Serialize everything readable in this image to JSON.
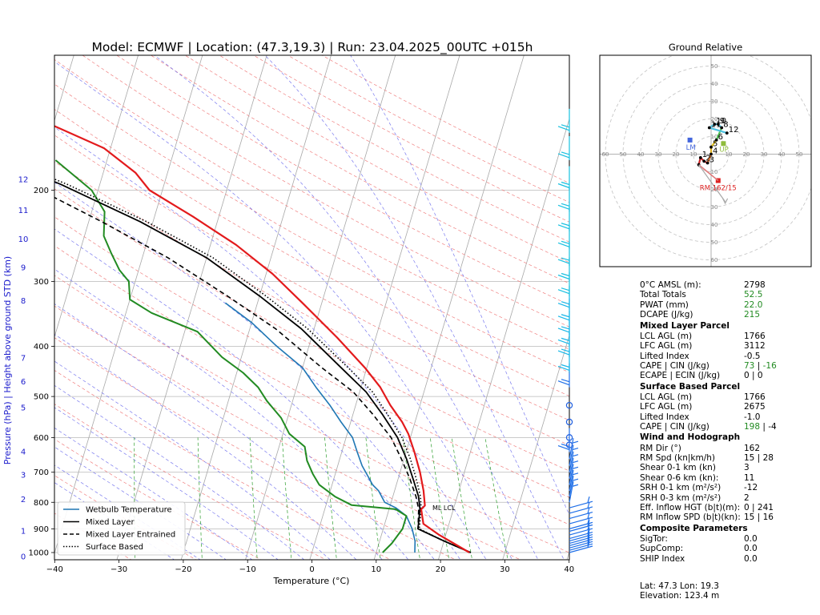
{
  "title": "Model: ECMWF | Location: (47.3,19.3) | Run: 23.04.2025_00UTC +015h",
  "skewt": {
    "xlabel": "Temperature (°C)",
    "ylabel": "Pressure (hPa)   |   Height above ground STD (km)",
    "xticks": [
      -40,
      -30,
      -20,
      -10,
      0,
      10,
      20,
      30,
      40
    ],
    "pressure_ticks": [
      200,
      300,
      400,
      500,
      600,
      700,
      800,
      900,
      1000
    ],
    "height_ticks": [
      {
        "label": "12",
        "p": 190.5
      },
      {
        "label": "11",
        "p": 218.6
      },
      {
        "label": "10",
        "p": 248.4
      },
      {
        "label": "9",
        "p": 281.8
      },
      {
        "label": "8",
        "p": 326.6
      },
      {
        "label": "7",
        "p": 421.5
      },
      {
        "label": "6",
        "p": 467.9
      },
      {
        "label": "5",
        "p": 525.2
      },
      {
        "label": "4",
        "p": 638.9
      },
      {
        "label": "3",
        "p": 708.8
      },
      {
        "label": "2",
        "p": 789.4
      },
      {
        "label": "1",
        "p": 908.0
      },
      {
        "label": "0",
        "p": 1018.0
      }
    ],
    "lcl_label": "ML LCL",
    "legend": [
      {
        "label": "Wetbulb Temperature",
        "color": "#1f77b4",
        "style": "solid"
      },
      {
        "label": "Mixed Layer",
        "color": "#000000",
        "style": "solid"
      },
      {
        "label": "Mixed Layer Entrained",
        "color": "#000000",
        "style": "dashed"
      },
      {
        "label": "Surface Based",
        "color": "#000000",
        "style": "dotted"
      }
    ]
  },
  "chart_data": [
    {
      "type": "line",
      "title": "Model: ECMWF | Location: (47.3,19.3) | Run: 23.04.2025_00UTC +015h",
      "xlabel": "Temperature (°C)",
      "ylabel": "Pressure (hPa)",
      "xlim": [
        -40,
        40
      ],
      "ylim": [
        1020,
        100
      ],
      "y_scale": "log",
      "x_skewed": true,
      "grid": true,
      "legend_position": "bottom-left",
      "series": [
        {
          "key": "temperature",
          "color": "#e31a1c",
          "points": [
            [
              24.5,
              1000
            ],
            [
              22,
              965
            ],
            [
              19,
              925
            ],
            [
              16,
              880
            ],
            [
              15,
              825
            ],
            [
              15.4,
              812
            ],
            [
              14.5,
              760
            ],
            [
              13.1,
              700
            ],
            [
              11.3,
              640
            ],
            [
              9.5,
              590
            ],
            [
              8,
              560
            ],
            [
              5.4,
              520
            ],
            [
              3,
              480
            ],
            [
              -0.3,
              440
            ],
            [
              -6,
              385
            ],
            [
              -13,
              330
            ],
            [
              -19,
              290
            ],
            [
              -26,
              255
            ],
            [
              -34,
              225
            ],
            [
              -42,
              200
            ],
            [
              -45,
              185
            ],
            [
              -51,
              166
            ],
            [
              -63,
              145
            ],
            [
              -75,
              125
            ]
          ]
        },
        {
          "key": "dewpoint",
          "color": "#228b22",
          "points": [
            [
              11,
              1000
            ],
            [
              12,
              960
            ],
            [
              13,
              900
            ],
            [
              13,
              850
            ],
            [
              11,
              825
            ],
            [
              4,
              810
            ],
            [
              1,
              780
            ],
            [
              -2,
              740
            ],
            [
              -3.5,
              705
            ],
            [
              -5,
              665
            ],
            [
              -6,
              625
            ],
            [
              -9,
              590
            ],
            [
              -11,
              550
            ],
            [
              -14,
              510
            ],
            [
              -16,
              480
            ],
            [
              -19,
              450
            ],
            [
              -23,
              420
            ],
            [
              -28,
              375
            ],
            [
              -36,
              345
            ],
            [
              -40,
              325
            ],
            [
              -41,
              300
            ],
            [
              -43,
              285
            ],
            [
              -45,
              265
            ],
            [
              -47,
              245
            ],
            [
              -48,
              220
            ],
            [
              -51,
              200
            ],
            [
              -58,
              175
            ]
          ]
        },
        {
          "key": "wetbulb",
          "color": "#1f77b4",
          "points": [
            [
              16,
              1000
            ],
            [
              15.5,
              950
            ],
            [
              14.5,
              900
            ],
            [
              13,
              850
            ],
            [
              11,
              820
            ],
            [
              9,
              800
            ],
            [
              7.5,
              760
            ],
            [
              6.3,
              740
            ],
            [
              5.5,
              720
            ],
            [
              3.8,
              680
            ],
            [
              2.4,
              640
            ],
            [
              1,
              600
            ],
            [
              -1.5,
              560
            ],
            [
              -4,
              520
            ],
            [
              -7,
              480
            ],
            [
              -10,
              440
            ],
            [
              -15,
              400
            ],
            [
              -20,
              360
            ],
            [
              -25,
              330
            ]
          ]
        },
        {
          "key": "mixed_layer",
          "color": "#000000",
          "style": "solid",
          "points": [
            [
              24.7,
              1000
            ],
            [
              20,
              950
            ],
            [
              15.4,
              900
            ],
            [
              14.8,
              825
            ],
            [
              14,
              780
            ],
            [
              12.3,
              720
            ],
            [
              10.4,
              660
            ],
            [
              8,
              600
            ],
            [
              4.5,
              540
            ],
            [
              1,
              490
            ],
            [
              -4,
              440
            ],
            [
              -12,
              370
            ],
            [
              -20,
              320
            ],
            [
              -30,
              270
            ],
            [
              -42,
              230
            ],
            [
              -56,
              195
            ],
            [
              -68,
              172
            ],
            [
              -80,
              152
            ]
          ]
        },
        {
          "key": "mixed_layer_entrained",
          "color": "#000000",
          "style": "dashed",
          "points": [
            [
              24.7,
              1000
            ],
            [
              20,
              950
            ],
            [
              15.4,
              900
            ],
            [
              14.6,
              825
            ],
            [
              13.6,
              780
            ],
            [
              11.8,
              720
            ],
            [
              9.6,
              660
            ],
            [
              7,
              600
            ],
            [
              3,
              540
            ],
            [
              -1,
              490
            ],
            [
              -7,
              440
            ],
            [
              -16,
              370
            ],
            [
              -25,
              320
            ],
            [
              -36,
              270
            ],
            [
              -48,
              230
            ],
            [
              -61,
              195
            ],
            [
              -72,
              172
            ],
            [
              -84,
              152
            ]
          ]
        },
        {
          "key": "surface_based",
          "color": "#000000",
          "style": "dotted",
          "points": [
            [
              24.7,
              1000
            ],
            [
              20,
              950
            ],
            [
              15.6,
              900
            ],
            [
              15,
              825
            ],
            [
              14.3,
              780
            ],
            [
              12.8,
              720
            ],
            [
              11,
              660
            ],
            [
              8.7,
              600
            ],
            [
              5.3,
              540
            ],
            [
              2,
              490
            ],
            [
              -2.9,
              440
            ],
            [
              -11,
              370
            ],
            [
              -19,
              320
            ],
            [
              -29,
              270
            ],
            [
              -41,
              230
            ],
            [
              -55,
              195
            ],
            [
              -67,
              172
            ],
            [
              -79,
              152
            ]
          ]
        }
      ],
      "wind_barbs_p": [
        1000,
        990,
        980,
        970,
        960,
        950,
        940,
        925,
        910,
        900,
        880,
        860,
        840,
        820,
        800,
        780,
        760,
        740,
        720,
        700,
        680,
        660,
        640,
        620,
        600,
        560,
        520,
        480,
        450,
        420,
        400,
        380,
        360,
        340,
        320,
        300,
        280,
        260,
        240,
        220,
        200,
        175,
        155
      ]
    },
    {
      "type": "scatter",
      "title": "Ground Relative",
      "xlim": [
        -60,
        60
      ],
      "ylim": [
        -60,
        60
      ],
      "rings": [
        10,
        20,
        30,
        40,
        50,
        60
      ],
      "ring_labels_x": [
        "60",
        "50",
        "40",
        "30",
        "20",
        "10",
        "10",
        "20",
        "30",
        "40",
        "50"
      ],
      "ring_labels_y": [
        "50",
        "40",
        "30",
        "20",
        "10",
        "10",
        "20",
        "30",
        "40",
        "50",
        "60"
      ],
      "hodograph_points": [
        {
          "label": "",
          "u": -7,
          "v": -6
        },
        {
          "label": "1",
          "u": -6,
          "v": -2
        },
        {
          "label": "2",
          "u": -4,
          "v": -4
        },
        {
          "label": "3",
          "u": -2,
          "v": -5
        },
        {
          "label": "4",
          "u": 0,
          "v": 0
        },
        {
          "label": "5",
          "u": 0,
          "v": 4
        },
        {
          "label": "6",
          "u": 3,
          "v": 8
        },
        {
          "label": "8",
          "u": 6,
          "v": 15
        },
        {
          "label": "9",
          "u": 4,
          "v": 17
        },
        {
          "label": "10",
          "u": 2,
          "v": 17
        },
        {
          "label": "11",
          "u": -1,
          "v": 15
        },
        {
          "label": "12",
          "u": 9,
          "v": 12
        }
      ],
      "markers": [
        {
          "label": "LM",
          "u": -12,
          "v": 8,
          "color": "#4466dd"
        },
        {
          "label": "UP",
          "u": 7,
          "v": 6,
          "color": "#8fbc3b"
        },
        {
          "label": "RM 162/15",
          "u": 4,
          "v": -15,
          "color": "#dd2222"
        }
      ]
    }
  ],
  "hodograph": {
    "title": "Ground Relative",
    "lm_label": "LM",
    "up_label": "UP",
    "rm_label": "RM 162/15"
  },
  "params": {
    "general": [
      {
        "label": "0°C AMSL (m):",
        "value": "2798",
        "color": "#000000"
      },
      {
        "label": "Total Totals",
        "value": "52.5",
        "color": "#228b22"
      },
      {
        "label": "PWAT (mm)",
        "value": "22.0",
        "color": "#228b22"
      },
      {
        "label": "DCAPE (J/kg)",
        "value": "215",
        "color": "#228b22"
      }
    ],
    "ml_header": "Mixed Layer Parcel",
    "ml": {
      "lcl_label": "LCL AGL (m)",
      "lcl": "1766",
      "lfc_label": "LFC AGL (m)",
      "lfc": "3112",
      "li_label": "Lifted Index",
      "li": "-0.5",
      "cape_label": "CAPE | CIN (J/kg)",
      "cape": "73",
      "cin": "-16",
      "ecape_label": "ECAPE | ECIN (J/kg)",
      "ecape": "0",
      "ecin": "0"
    },
    "sb_header": "Surface Based Parcel",
    "sb": {
      "lcl_label": "LCL AGL (m)",
      "lcl": "1766",
      "lfc_label": "LFC AGL (m)",
      "lfc": "2675",
      "li_label": "Lifted Index",
      "li": "-1.0",
      "cape_label": "CAPE | CIN (J/kg)",
      "cape": "198",
      "cin": "-4"
    },
    "wind_header": "Wind and Hodograph",
    "wind": {
      "rmdir_label": "RM Dir (°)",
      "rmdir": "162",
      "rmspd_label": "RM Spd (kn|km/h)",
      "rmspd": "15 | 28",
      "sh01_label": "Shear 0-1 km (kn)",
      "sh01": "3",
      "sh06_label": "Shear 0-6 km (kn):",
      "sh06": "11",
      "srh01_label": "SRH 0-1 km (m²/s²)",
      "srh01": "-12",
      "srh03_label": "SRH 0-3 km (m²/s²)",
      "srh03": "2",
      "effhgt_label": "Eff. Inflow HGT (b|t)(m):",
      "effhgt": "0 | 241",
      "rmspd2_label": "RM Inflow SPD (b|t)(kn):",
      "rmspd2": "15 | 16"
    },
    "comp_header": "Composite Parameters",
    "comp": {
      "sigtor_label": "SigTor:",
      "sigtor": "0.0",
      "supcomp_label": "SupComp:",
      "supcomp": "0.0",
      "ship_label": "SHIP Index",
      "ship": "0.0"
    }
  },
  "footer": {
    "latlon": "Lat: 47.3  Lon: 19.3",
    "elevation": "Elevation: 123.4 m"
  }
}
